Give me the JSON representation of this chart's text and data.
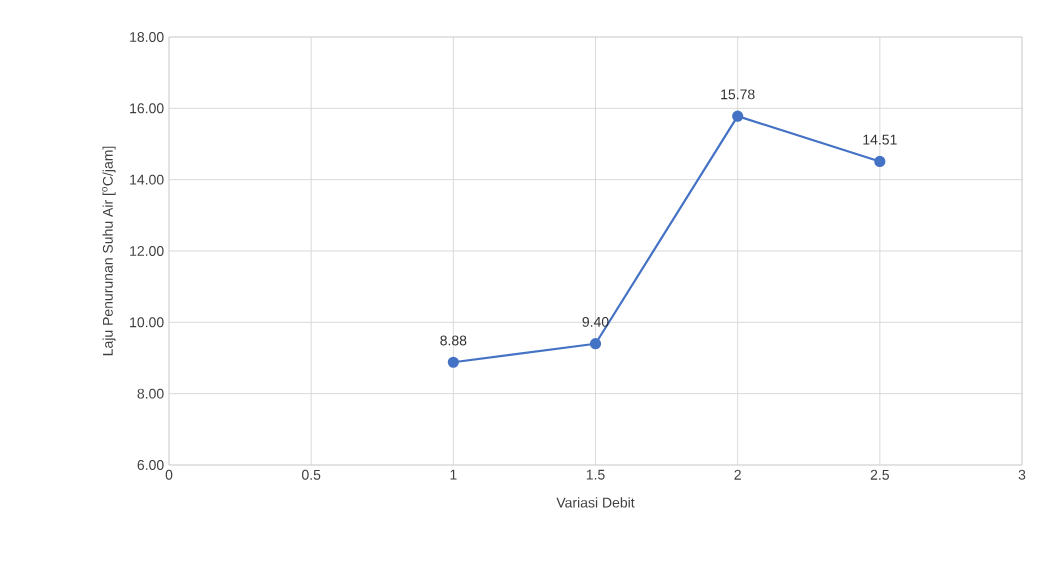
{
  "chart_data": {
    "type": "line",
    "xlabel": "Variasi Debit",
    "ylabel": "Laju Penurunan Suhu Air [$^{o}$C/jam]",
    "x": [
      1,
      1.5,
      2,
      2.5
    ],
    "series": [
      {
        "color": "#4472c4",
        "values": [
          8.88,
          9.4,
          15.78,
          14.51
        ],
        "value_labels": [
          "8.88",
          "9.40",
          "15.78",
          "14.51"
        ]
      }
    ],
    "xlim": [
      0,
      3
    ],
    "xticks": [
      0,
      0.5,
      1,
      1.5,
      2,
      2.5,
      3
    ],
    "ylim": [
      6,
      18
    ],
    "yticks": [
      {
        "value": 6,
        "label": "6.00"
      },
      {
        "value": 8,
        "label": "8.00"
      },
      {
        "value": 10,
        "label": "10.00"
      },
      {
        "value": 12,
        "label": "12.00"
      },
      {
        "value": 14,
        "label": "14.00"
      },
      {
        "value": 16,
        "label": "16.00"
      },
      {
        "value": 18,
        "label": "18.00"
      }
    ],
    "grid": true,
    "marker": "circle",
    "line_style": "solid"
  }
}
